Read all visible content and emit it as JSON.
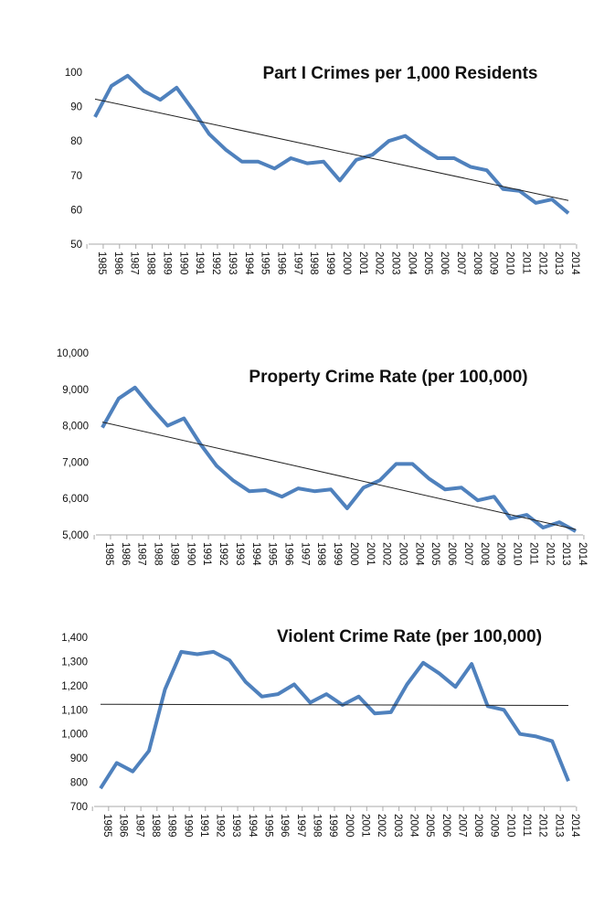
{
  "chart_data": [
    {
      "type": "line",
      "title": "Part I Crimes per 1,000 Residents",
      "categories": [
        "1985",
        "1986",
        "1987",
        "1988",
        "1989",
        "1990",
        "1991",
        "1992",
        "1993",
        "1994",
        "1995",
        "1996",
        "1997",
        "1998",
        "1999",
        "2000",
        "2001",
        "2002",
        "2003",
        "2004",
        "2005",
        "2006",
        "2007",
        "2008",
        "2009",
        "2010",
        "2011",
        "2012",
        "2013",
        "2014"
      ],
      "values": [
        87,
        96,
        99,
        94.5,
        92,
        95.5,
        89,
        82,
        77.5,
        74,
        74,
        72,
        75,
        73.5,
        74,
        68.5,
        74.5,
        76,
        80,
        81.5,
        78,
        75,
        75,
        72.5,
        71.5,
        66,
        65.5,
        62,
        63,
        59
      ],
      "trendline": [
        92.2,
        62.7
      ],
      "ylim": [
        50,
        100
      ],
      "yticks": [
        "50",
        "60",
        "70",
        "80",
        "90",
        "100"
      ],
      "grid": false,
      "colors": {
        "series": "#4f81bd",
        "trend": "#222222"
      }
    },
    {
      "type": "line",
      "title": "Property Crime Rate (per 100,000)",
      "categories": [
        "1985",
        "1986",
        "1987",
        "1988",
        "1989",
        "1990",
        "1991",
        "1992",
        "1993",
        "1994",
        "1995",
        "1996",
        "1997",
        "1998",
        "1999",
        "2000",
        "2001",
        "2002",
        "2003",
        "2004",
        "2005",
        "2006",
        "2007",
        "2008",
        "2009",
        "2010",
        "2011",
        "2012",
        "2013",
        "2014"
      ],
      "values": [
        7950,
        8750,
        9050,
        8500,
        8000,
        8200,
        7500,
        6900,
        6500,
        6200,
        6230,
        6050,
        6280,
        6200,
        6250,
        5730,
        6300,
        6500,
        6950,
        6950,
        6550,
        6250,
        6300,
        5950,
        6050,
        5450,
        5550,
        5200,
        5350,
        5100
      ],
      "trendline": [
        8100,
        5150
      ],
      "ylim": [
        5000,
        10000
      ],
      "yticks": [
        "5,000",
        "6,000",
        "7,000",
        "8,000",
        "9,000",
        "10,000"
      ],
      "grid": false,
      "colors": {
        "series": "#4f81bd",
        "trend": "#222222"
      }
    },
    {
      "type": "line",
      "title": "Violent Crime Rate (per 100,000)",
      "categories": [
        "1985",
        "1986",
        "1987",
        "1988",
        "1989",
        "1990",
        "1991",
        "1992",
        "1993",
        "1994",
        "1995",
        "1996",
        "1997",
        "1998",
        "1999",
        "2000",
        "2001",
        "2002",
        "2003",
        "2004",
        "2005",
        "2006",
        "2007",
        "2008",
        "2009",
        "2010",
        "2011",
        "2012",
        "2013",
        "2014"
      ],
      "values": [
        775,
        880,
        845,
        930,
        1185,
        1340,
        1330,
        1340,
        1305,
        1215,
        1155,
        1165,
        1205,
        1130,
        1165,
        1120,
        1155,
        1085,
        1090,
        1205,
        1295,
        1250,
        1195,
        1290,
        1115,
        1100,
        1000,
        990,
        970,
        805
      ],
      "trendline": [
        1123,
        1118
      ],
      "ylim": [
        700,
        1400
      ],
      "yticks": [
        "700",
        "800",
        "900",
        "1,000",
        "1,100",
        "1,200",
        "1,300",
        "1,400"
      ],
      "grid": false,
      "colors": {
        "series": "#4f81bd",
        "trend": "#222222"
      }
    }
  ]
}
